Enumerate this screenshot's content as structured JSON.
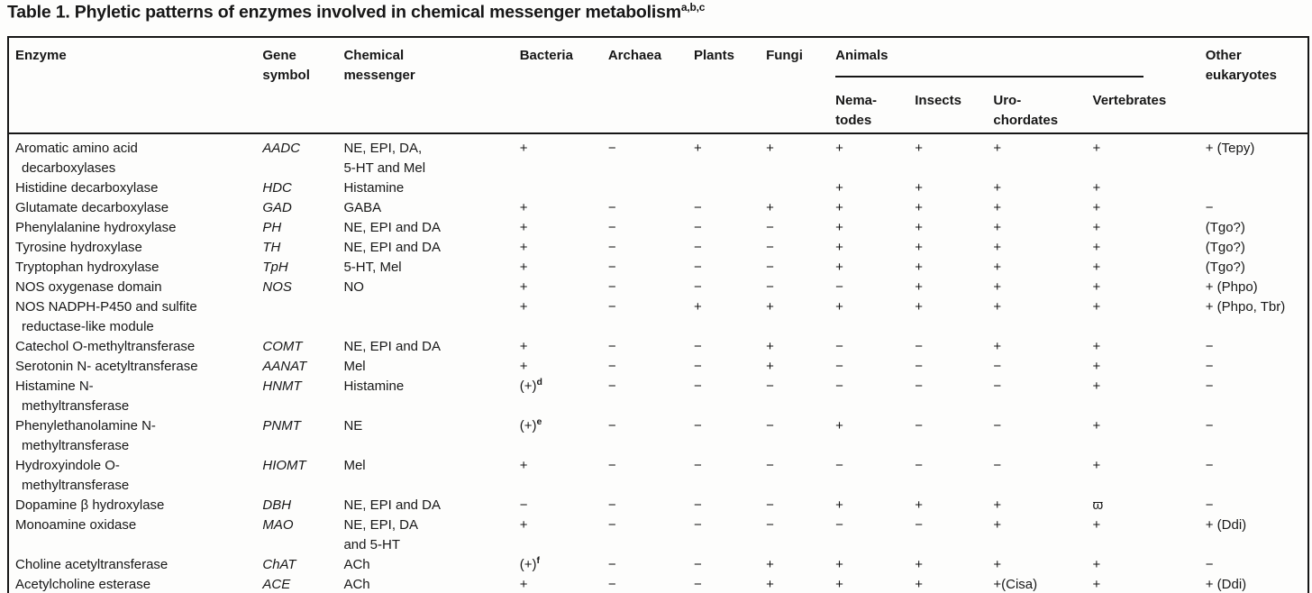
{
  "title": {
    "text": "Table 1. Phyletic patterns of enzymes involved in chemical messenger metabolism",
    "superscript": "a,b,c"
  },
  "table": {
    "header": {
      "enzyme": "Enzyme",
      "gene_symbol": "Gene\nsymbol",
      "chemical_messenger": "Chemical\nmessenger",
      "bacteria": "Bacteria",
      "archaea": "Archaea",
      "plants": "Plants",
      "fungi": "Fungi",
      "animals": "Animals",
      "nematodes": "Nema-\ntodes",
      "insects": "Insects",
      "urochordates": "Uro-\nchordates",
      "vertebrates": "Vertebrates",
      "other_eukaryotes": "Other\neukaryotes"
    },
    "value_columns": [
      "Bacteria",
      "Archaea",
      "Plants",
      "Fungi",
      "Nematodes",
      "Insects",
      "Urochordates",
      "Vertebrates",
      "Other eukaryotes"
    ],
    "rows": [
      {
        "enzyme": [
          "Aromatic amino acid",
          "decarboxylases"
        ],
        "gene": "AADC",
        "messenger": [
          "NE, EPI, DA,",
          "5-HT and Mel"
        ],
        "values": [
          "+",
          "−",
          "+",
          "+",
          "+",
          "+",
          "+",
          "+",
          "+ (Tepy)"
        ]
      },
      {
        "enzyme": [
          "Histidine decarboxylase"
        ],
        "gene": "HDC",
        "messenger": [
          "Histamine"
        ],
        "values": [
          "",
          "",
          "",
          "",
          "+",
          "+",
          "+",
          "+",
          ""
        ]
      },
      {
        "enzyme": [
          "Glutamate decarboxylase"
        ],
        "gene": "GAD",
        "messenger": [
          "GABA"
        ],
        "values": [
          "+",
          "−",
          "−",
          "+",
          "+",
          "+",
          "+",
          "+",
          "−"
        ]
      },
      {
        "enzyme": [
          "Phenylalanine hydroxylase"
        ],
        "gene": "PH",
        "messenger": [
          "NE, EPI and DA"
        ],
        "values": [
          "+",
          "−",
          "−",
          "−",
          "+",
          "+",
          "+",
          "+",
          "(Tgo?)"
        ]
      },
      {
        "enzyme": [
          "Tyrosine hydroxylase"
        ],
        "gene": "TH",
        "messenger": [
          "NE, EPI and DA"
        ],
        "values": [
          "+",
          "−",
          "−",
          "−",
          "+",
          "+",
          "+",
          "+",
          "(Tgo?)"
        ]
      },
      {
        "enzyme": [
          "Tryptophan hydroxylase"
        ],
        "gene": "TpH",
        "messenger": [
          "5-HT, Mel"
        ],
        "values": [
          "+",
          "−",
          "−",
          "−",
          "+",
          "+",
          "+",
          "+",
          "(Tgo?)"
        ]
      },
      {
        "enzyme": [
          "NOS oxygenase domain"
        ],
        "gene": "NOS",
        "messenger": [
          "NO"
        ],
        "values": [
          "+",
          "−",
          "−",
          "−",
          "−",
          "+",
          "+",
          "+",
          "+ (Phpo)"
        ]
      },
      {
        "enzyme": [
          "NOS NADPH-P450 and sulfite",
          "reductase-like module"
        ],
        "gene": "",
        "messenger": [],
        "values": [
          "+",
          "−",
          "+",
          "+",
          "+",
          "+",
          "+",
          "+",
          "+ (Phpo, Tbr)"
        ]
      },
      {
        "enzyme": [
          "Catechol O-methyltransferase"
        ],
        "gene": "COMT",
        "messenger": [
          "NE, EPI and DA"
        ],
        "values": [
          "+",
          "−",
          "−",
          "+",
          "−",
          "−",
          "+",
          "+",
          "−"
        ]
      },
      {
        "enzyme": [
          "Serotonin N- acetyltransferase"
        ],
        "gene": "AANAT",
        "messenger": [
          "Mel"
        ],
        "values": [
          "+",
          "−",
          "−",
          "+",
          "−",
          "−",
          "−",
          "+",
          "−"
        ]
      },
      {
        "enzyme": [
          "Histamine N-",
          "methyltransferase"
        ],
        "gene": "HNMT",
        "messenger": [
          "Histamine"
        ],
        "values": [
          "(+)^d",
          "−",
          "−",
          "−",
          "−",
          "−",
          "−",
          "+",
          "−"
        ]
      },
      {
        "enzyme": [
          "Phenylethanolamine N-",
          "methyltransferase"
        ],
        "gene": "PNMT",
        "messenger": [
          "NE"
        ],
        "values": [
          "(+)^e",
          "−",
          "−",
          "−",
          "+",
          "−",
          "−",
          "+",
          "−"
        ]
      },
      {
        "enzyme": [
          "Hydroxyindole O-",
          "methyltransferase"
        ],
        "gene": "HIOMT",
        "messenger": [
          "Mel"
        ],
        "values": [
          "+",
          "−",
          "−",
          "−",
          "−",
          "−",
          "−",
          "+",
          "−"
        ]
      },
      {
        "enzyme": [
          "Dopamine β hydroxylase"
        ],
        "gene": "DBH",
        "messenger": [
          "NE, EPI and DA"
        ],
        "values": [
          "−",
          "−",
          "−",
          "−",
          "+",
          "+",
          "+",
          "ϖ",
          "−"
        ]
      },
      {
        "enzyme": [
          "Monoamine oxidase"
        ],
        "gene": "MAO",
        "messenger": [
          "NE, EPI, DA",
          "and 5-HT"
        ],
        "values": [
          "+",
          "−",
          "−",
          "−",
          "−",
          "−",
          "+",
          "+",
          "+ (Ddi)"
        ]
      },
      {
        "enzyme": [
          "Choline acetyltransferase"
        ],
        "gene": "ChAT",
        "messenger": [
          "ACh"
        ],
        "values": [
          "(+)^f",
          "−",
          "−",
          "+",
          "+",
          "+",
          "+",
          "+",
          "−"
        ]
      },
      {
        "enzyme": [
          "Acetylcholine esterase"
        ],
        "gene": "ACE",
        "messenger": [
          "ACh"
        ],
        "values": [
          "+",
          "−",
          "−",
          "+",
          "+",
          "+",
          "+(Cisa)",
          "+",
          "+ (Ddi)"
        ]
      }
    ]
  }
}
